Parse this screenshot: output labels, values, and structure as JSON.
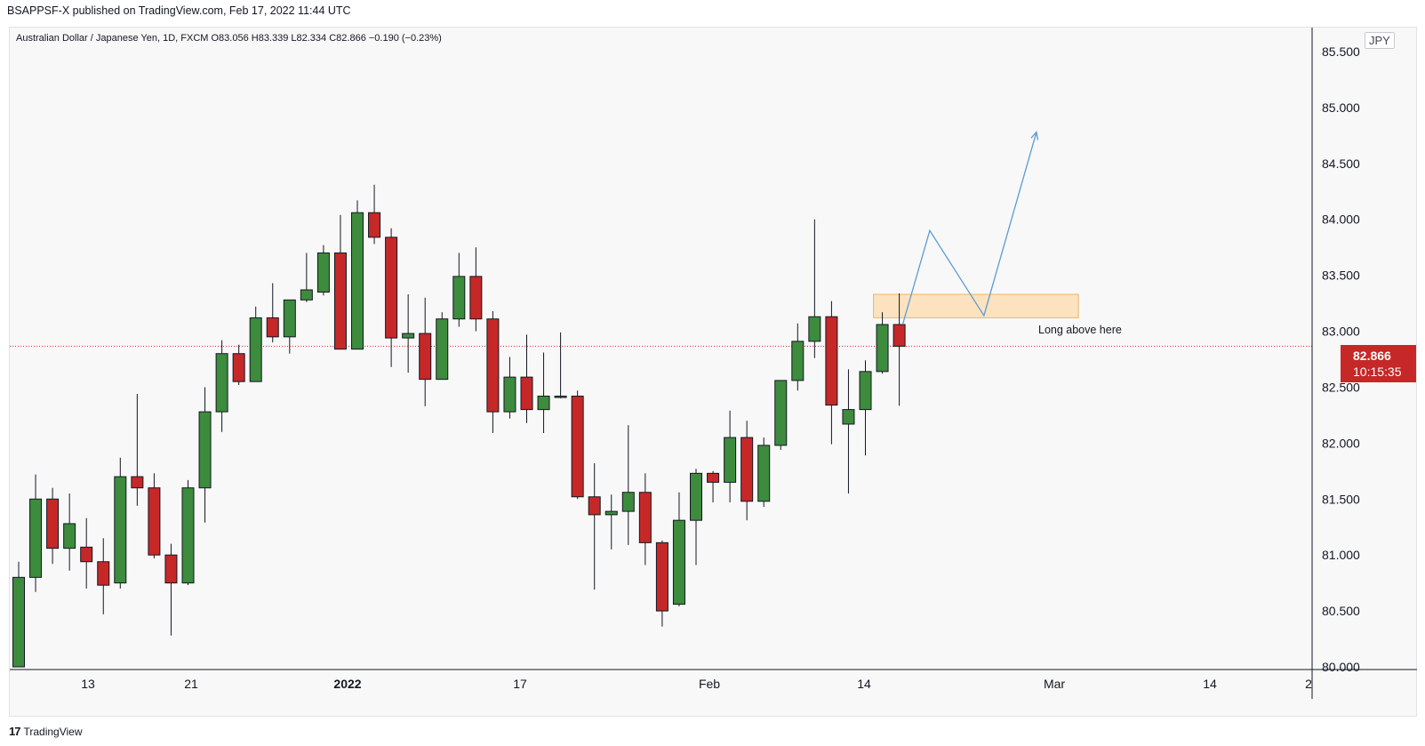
{
  "header": {
    "published": "BSAPPSF-X published on TradingView.com, Feb 17, 2022 11:44 UTC"
  },
  "symbol_line": "Australian Dollar / Japanese Yen, 1D, FXCM  O83.056  H83.339  L82.334  C82.866  −0.190 (−0.23%)",
  "currency": "JPY",
  "last_price": {
    "value": "82.866",
    "countdown": "10:15:35"
  },
  "annotation": "Long above here",
  "footer": {
    "brand": "TradingView",
    "logo": "17"
  },
  "colors": {
    "up": "#3d8b3d",
    "down": "#c62828",
    "projection": "#5b9bd5",
    "zone_fill": "#fde2bf",
    "zone_border": "#f0b56e",
    "price_line": "#c62828"
  },
  "chart_data": {
    "type": "candlestick",
    "symbol": "Australian Dollar / Japanese Yen",
    "interval": "1D",
    "ylim": [
      80.0,
      85.7
    ],
    "y_ticks": [
      "80.000",
      "80.500",
      "81.000",
      "81.500",
      "82.000",
      "82.500",
      "83.000",
      "83.500",
      "84.000",
      "84.500",
      "85.000",
      "85.500"
    ],
    "x_ticks": [
      "13",
      "21",
      "2022",
      "17",
      "Feb",
      "14",
      "Mar",
      "14",
      "2"
    ],
    "last_price": 82.866,
    "candles": [
      {
        "o": 80.0,
        "h": 80.94,
        "l": 80.0,
        "c": 80.8
      },
      {
        "o": 80.8,
        "h": 81.72,
        "l": 80.67,
        "c": 81.5
      },
      {
        "o": 81.5,
        "h": 81.6,
        "l": 80.92,
        "c": 81.06
      },
      {
        "o": 81.06,
        "h": 81.55,
        "l": 80.86,
        "c": 81.28
      },
      {
        "o": 81.07,
        "h": 81.33,
        "l": 80.7,
        "c": 80.94
      },
      {
        "o": 80.94,
        "h": 81.15,
        "l": 80.47,
        "c": 80.73
      },
      {
        "o": 80.75,
        "h": 81.87,
        "l": 80.7,
        "c": 81.7
      },
      {
        "o": 81.7,
        "h": 82.44,
        "l": 81.44,
        "c": 81.6
      },
      {
        "o": 81.6,
        "h": 81.73,
        "l": 80.97,
        "c": 81.0
      },
      {
        "o": 81.0,
        "h": 81.1,
        "l": 80.28,
        "c": 80.75
      },
      {
        "o": 80.75,
        "h": 81.67,
        "l": 80.73,
        "c": 81.6
      },
      {
        "o": 81.6,
        "h": 82.5,
        "l": 81.29,
        "c": 82.28
      },
      {
        "o": 82.28,
        "h": 82.92,
        "l": 82.1,
        "c": 82.8
      },
      {
        "o": 82.8,
        "h": 82.88,
        "l": 82.52,
        "c": 82.55
      },
      {
        "o": 82.55,
        "h": 83.22,
        "l": 82.55,
        "c": 83.12
      },
      {
        "o": 83.12,
        "h": 83.43,
        "l": 82.9,
        "c": 82.95
      },
      {
        "o": 82.95,
        "h": 83.28,
        "l": 82.8,
        "c": 83.28
      },
      {
        "o": 83.28,
        "h": 83.7,
        "l": 83.26,
        "c": 83.37
      },
      {
        "o": 83.35,
        "h": 83.77,
        "l": 83.32,
        "c": 83.7
      },
      {
        "o": 83.7,
        "h": 84.04,
        "l": 82.84,
        "c": 82.84
      },
      {
        "o": 82.84,
        "h": 84.17,
        "l": 82.84,
        "c": 84.06
      },
      {
        "o": 84.06,
        "h": 84.31,
        "l": 83.78,
        "c": 83.84
      },
      {
        "o": 83.84,
        "h": 83.92,
        "l": 82.68,
        "c": 82.94
      },
      {
        "o": 82.94,
        "h": 83.33,
        "l": 82.63,
        "c": 82.98
      },
      {
        "o": 82.98,
        "h": 83.3,
        "l": 82.33,
        "c": 82.57
      },
      {
        "o": 82.57,
        "h": 83.17,
        "l": 82.57,
        "c": 83.11
      },
      {
        "o": 83.11,
        "h": 83.7,
        "l": 83.04,
        "c": 83.49
      },
      {
        "o": 83.49,
        "h": 83.75,
        "l": 83.0,
        "c": 83.11
      },
      {
        "o": 83.11,
        "h": 83.18,
        "l": 82.09,
        "c": 82.28
      },
      {
        "o": 82.28,
        "h": 82.77,
        "l": 82.22,
        "c": 82.59
      },
      {
        "o": 82.59,
        "h": 82.97,
        "l": 82.18,
        "c": 82.3
      },
      {
        "o": 82.3,
        "h": 82.81,
        "l": 82.09,
        "c": 82.42
      },
      {
        "o": 82.42,
        "h": 82.99,
        "l": 82.4,
        "c": 82.42
      },
      {
        "o": 82.42,
        "h": 82.47,
        "l": 81.5,
        "c": 81.52
      },
      {
        "o": 81.52,
        "h": 81.82,
        "l": 80.69,
        "c": 81.36
      },
      {
        "o": 81.36,
        "h": 81.54,
        "l": 81.05,
        "c": 81.39
      },
      {
        "o": 81.39,
        "h": 82.16,
        "l": 81.09,
        "c": 81.56
      },
      {
        "o": 81.56,
        "h": 81.73,
        "l": 80.91,
        "c": 81.11
      },
      {
        "o": 81.11,
        "h": 81.13,
        "l": 80.36,
        "c": 80.5
      },
      {
        "o": 80.56,
        "h": 81.56,
        "l": 80.54,
        "c": 81.31
      },
      {
        "o": 81.31,
        "h": 81.77,
        "l": 80.91,
        "c": 81.73
      },
      {
        "o": 81.73,
        "h": 81.75,
        "l": 81.47,
        "c": 81.65
      },
      {
        "o": 81.65,
        "h": 82.29,
        "l": 81.47,
        "c": 82.05
      },
      {
        "o": 82.05,
        "h": 82.2,
        "l": 81.31,
        "c": 81.48
      },
      {
        "o": 81.48,
        "h": 82.05,
        "l": 81.43,
        "c": 81.98
      },
      {
        "o": 81.98,
        "h": 82.56,
        "l": 81.94,
        "c": 82.56
      },
      {
        "o": 82.56,
        "h": 83.07,
        "l": 82.47,
        "c": 82.91
      },
      {
        "o": 82.91,
        "h": 84.0,
        "l": 82.76,
        "c": 83.13
      },
      {
        "o": 83.13,
        "h": 83.27,
        "l": 81.99,
        "c": 82.34
      },
      {
        "o": 82.17,
        "h": 82.66,
        "l": 81.55,
        "c": 82.3
      },
      {
        "o": 82.3,
        "h": 82.74,
        "l": 81.89,
        "c": 82.64
      },
      {
        "o": 82.64,
        "h": 83.17,
        "l": 82.62,
        "c": 83.06
      },
      {
        "o": 83.06,
        "h": 83.339,
        "l": 82.334,
        "c": 82.866
      }
    ],
    "zone": {
      "from_index": 51,
      "to_index": 63,
      "low": 83.12,
      "high": 83.33,
      "label": "Long above here"
    },
    "projection_path": [
      {
        "i": 52.2,
        "p": 83.06
      },
      {
        "i": 53.8,
        "p": 83.9
      },
      {
        "i": 57.0,
        "p": 83.14
      },
      {
        "i": 60.1,
        "p": 84.78
      }
    ]
  }
}
